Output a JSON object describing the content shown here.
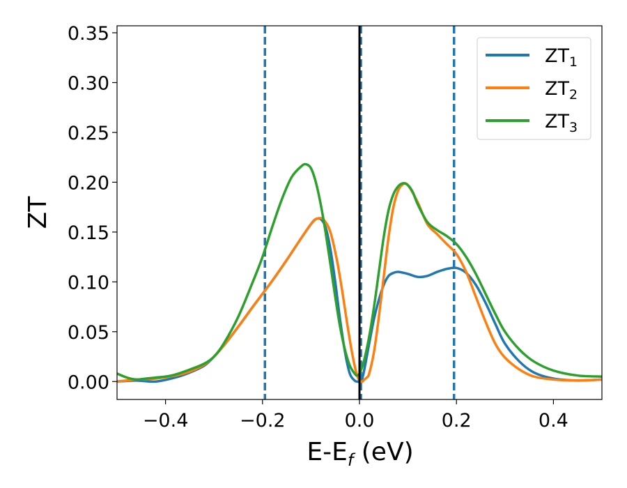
{
  "chart_data": {
    "type": "line",
    "xlabel_main": "E-E",
    "xlabel_sub": "f",
    "xlabel_unit": " (eV)",
    "ylabel": "ZT",
    "xlim": [
      -0.5,
      0.5
    ],
    "ylim": [
      -0.018,
      0.357
    ],
    "xticks": [
      -0.4,
      -0.2,
      0.0,
      0.2,
      0.4
    ],
    "xtick_labels": [
      "−0.4",
      "−0.2",
      "0.0",
      "0.2",
      "0.4"
    ],
    "yticks": [
      0.0,
      0.05,
      0.1,
      0.15,
      0.2,
      0.25,
      0.3,
      0.35
    ],
    "ytick_labels": [
      "0.00",
      "0.05",
      "0.10",
      "0.15",
      "0.20",
      "0.25",
      "0.30",
      "0.35"
    ],
    "legend_position": "top-right",
    "vlines": [
      {
        "x": -0.195,
        "style": "dashed",
        "color": "#1f77b4"
      },
      {
        "x": 0.003,
        "style": "dashed",
        "color": "#1f77b4"
      },
      {
        "x": 0.195,
        "style": "dashed",
        "color": "#1f77b4"
      },
      {
        "x": 0.0,
        "style": "solid",
        "color": "#000000"
      }
    ],
    "series": [
      {
        "name": "ZT",
        "sub": "1",
        "color": "#1f77b4",
        "x": [
          -0.5,
          -0.46,
          -0.42,
          -0.38,
          -0.35,
          -0.32,
          -0.3,
          -0.28,
          -0.25,
          -0.22,
          -0.2,
          -0.18,
          -0.15,
          -0.12,
          -0.1,
          -0.09,
          -0.08,
          -0.07,
          -0.06,
          -0.05,
          -0.04,
          -0.03,
          -0.02,
          -0.01,
          -0.005,
          0.0,
          0.005,
          0.01,
          0.02,
          0.03,
          0.04,
          0.05,
          0.06,
          0.07,
          0.08,
          0.1,
          0.12,
          0.14,
          0.16,
          0.18,
          0.2,
          0.22,
          0.24,
          0.26,
          0.28,
          0.3,
          0.33,
          0.36,
          0.4,
          0.45,
          0.5
        ],
        "y": [
          0.0,
          0.001,
          0.0,
          0.004,
          0.009,
          0.016,
          0.025,
          0.036,
          0.055,
          0.075,
          0.088,
          0.101,
          0.122,
          0.144,
          0.158,
          0.163,
          0.163,
          0.155,
          0.133,
          0.1,
          0.062,
          0.03,
          0.008,
          0.001,
          0.0,
          0.0,
          0.002,
          0.012,
          0.038,
          0.063,
          0.082,
          0.097,
          0.106,
          0.109,
          0.11,
          0.108,
          0.105,
          0.106,
          0.11,
          0.113,
          0.114,
          0.109,
          0.097,
          0.079,
          0.058,
          0.038,
          0.02,
          0.009,
          0.003,
          0.001,
          0.002
        ]
      },
      {
        "name": "ZT",
        "sub": "2",
        "color": "#ff7f0e",
        "x": [
          -0.5,
          -0.46,
          -0.42,
          -0.38,
          -0.35,
          -0.32,
          -0.3,
          -0.28,
          -0.25,
          -0.22,
          -0.2,
          -0.18,
          -0.15,
          -0.12,
          -0.1,
          -0.09,
          -0.08,
          -0.075,
          -0.07,
          -0.065,
          -0.06,
          -0.055,
          -0.05,
          -0.045,
          -0.04,
          -0.035,
          -0.03,
          -0.025,
          -0.02,
          -0.015,
          -0.01,
          -0.005,
          0.0,
          0.003,
          0.006,
          0.01,
          0.015,
          0.02,
          0.03,
          0.04,
          0.05,
          0.06,
          0.07,
          0.08,
          0.09,
          0.1,
          0.12,
          0.14,
          0.16,
          0.18,
          0.2,
          0.22,
          0.24,
          0.26,
          0.28,
          0.3,
          0.33,
          0.36,
          0.4,
          0.45,
          0.5
        ],
        "y": [
          0.0,
          0.002,
          0.003,
          0.006,
          0.01,
          0.017,
          0.025,
          0.036,
          0.055,
          0.075,
          0.088,
          0.101,
          0.122,
          0.144,
          0.158,
          0.163,
          0.164,
          0.163,
          0.16,
          0.156,
          0.15,
          0.141,
          0.13,
          0.118,
          0.104,
          0.089,
          0.073,
          0.057,
          0.042,
          0.028,
          0.016,
          0.006,
          0.001,
          0.0,
          0.0,
          0.002,
          0.004,
          0.008,
          0.03,
          0.065,
          0.105,
          0.145,
          0.175,
          0.192,
          0.198,
          0.197,
          0.18,
          0.158,
          0.148,
          0.138,
          0.128,
          0.11,
          0.085,
          0.06,
          0.038,
          0.024,
          0.012,
          0.005,
          0.002,
          0.001,
          0.002
        ]
      },
      {
        "name": "ZT",
        "sub": "3",
        "color": "#2ca02c",
        "x": [
          -0.5,
          -0.48,
          -0.46,
          -0.44,
          -0.42,
          -0.4,
          -0.38,
          -0.35,
          -0.32,
          -0.3,
          -0.28,
          -0.25,
          -0.22,
          -0.2,
          -0.18,
          -0.16,
          -0.14,
          -0.12,
          -0.11,
          -0.1,
          -0.09,
          -0.08,
          -0.07,
          -0.06,
          -0.05,
          -0.04,
          -0.03,
          -0.02,
          -0.01,
          -0.005,
          0.0,
          0.005,
          0.01,
          0.02,
          0.03,
          0.04,
          0.05,
          0.06,
          0.07,
          0.08,
          0.09,
          0.1,
          0.11,
          0.12,
          0.14,
          0.16,
          0.18,
          0.2,
          0.22,
          0.24,
          0.26,
          0.28,
          0.3,
          0.33,
          0.36,
          0.4,
          0.45,
          0.5
        ],
        "y": [
          0.008,
          0.004,
          0.002,
          0.003,
          0.004,
          0.005,
          0.007,
          0.012,
          0.018,
          0.025,
          0.038,
          0.065,
          0.1,
          0.125,
          0.155,
          0.183,
          0.205,
          0.216,
          0.218,
          0.214,
          0.2,
          0.178,
          0.15,
          0.118,
          0.085,
          0.055,
          0.032,
          0.016,
          0.008,
          0.006,
          0.008,
          0.014,
          0.022,
          0.045,
          0.075,
          0.11,
          0.145,
          0.172,
          0.188,
          0.196,
          0.199,
          0.197,
          0.19,
          0.178,
          0.16,
          0.152,
          0.146,
          0.138,
          0.125,
          0.108,
          0.088,
          0.068,
          0.05,
          0.032,
          0.02,
          0.011,
          0.006,
          0.005
        ]
      }
    ]
  }
}
